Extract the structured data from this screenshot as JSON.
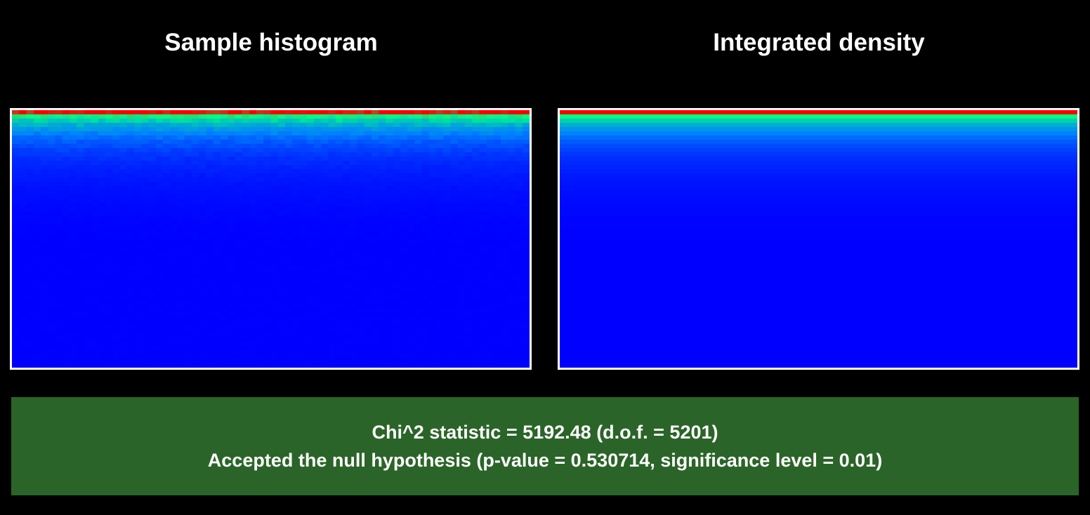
{
  "chart_data": [
    {
      "type": "heatmap",
      "title": "Sample histogram",
      "colormap": [
        "#ff0000",
        "#00ff80",
        "#0080ff",
        "#0000ff"
      ],
      "row_profile": [
        1.0,
        0.55,
        0.42,
        0.33,
        0.26,
        0.21,
        0.17,
        0.14,
        0.12,
        0.1,
        0.085,
        0.072,
        0.062,
        0.054,
        0.047,
        0.04,
        0.035,
        0.03,
        0.026,
        0.022,
        0.019,
        0.016,
        0.013,
        0.011,
        0.009,
        0.007,
        0.005,
        0.004,
        0.003,
        0.002,
        0.001
      ],
      "noise": true
    },
    {
      "type": "heatmap",
      "title": "Integrated density",
      "colormap": [
        "#ff0000",
        "#00ff80",
        "#0080ff",
        "#0000ff"
      ],
      "row_profile": [
        1.0,
        0.55,
        0.42,
        0.33,
        0.26,
        0.21,
        0.17,
        0.14,
        0.12,
        0.1,
        0.085,
        0.072,
        0.062,
        0.054,
        0.047,
        0.04,
        0.035,
        0.03,
        0.026,
        0.022,
        0.019,
        0.016,
        0.013,
        0.011,
        0.009,
        0.007,
        0.005,
        0.004,
        0.003,
        0.002,
        0.001
      ],
      "noise": false
    }
  ],
  "result": {
    "line1": "Chi^2 statistic = 5192.48 (d.o.f. = 5201)",
    "line2": "Accepted the null hypothesis (p-value = 0.530714, significance level = 0.01)",
    "background": "#2b6428"
  }
}
